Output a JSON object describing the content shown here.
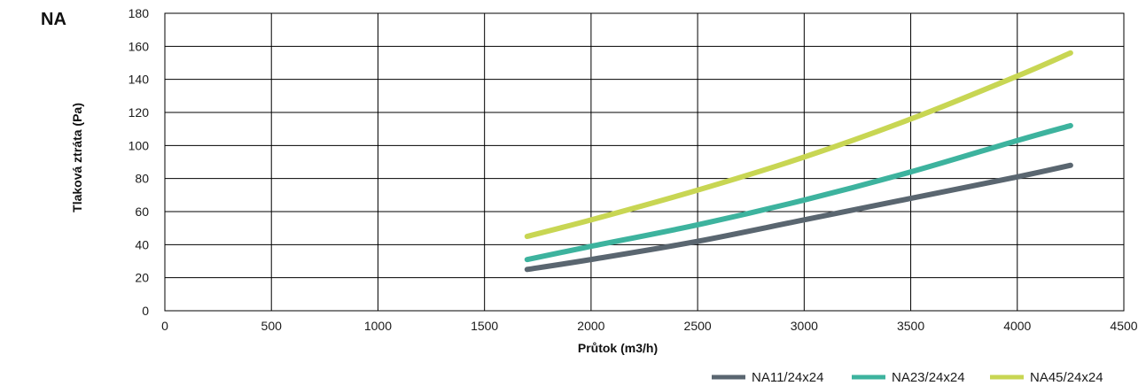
{
  "chart_data": {
    "type": "line",
    "title": "NA",
    "xlabel": "Průtok (m3/h)",
    "ylabel": "Tlaková ztráta (Pa)",
    "xlim": [
      0,
      4500
    ],
    "ylim": [
      0,
      180
    ],
    "x_ticks": [
      0,
      500,
      1000,
      1500,
      2000,
      2500,
      3000,
      3500,
      4000,
      4500
    ],
    "y_ticks": [
      0,
      20,
      40,
      60,
      80,
      100,
      120,
      140,
      160,
      180
    ],
    "grid": true,
    "legend_position": "bottom-right",
    "series": [
      {
        "name": "NA11/24x24",
        "color": "#5a6670",
        "points": [
          [
            1700,
            25
          ],
          [
            2000,
            31
          ],
          [
            2500,
            42
          ],
          [
            3000,
            55
          ],
          [
            3500,
            68
          ],
          [
            4000,
            81
          ],
          [
            4250,
            88
          ]
        ]
      },
      {
        "name": "NA23/24x24",
        "color": "#3db39e",
        "points": [
          [
            1700,
            31
          ],
          [
            2000,
            39
          ],
          [
            2500,
            52
          ],
          [
            3000,
            67
          ],
          [
            3500,
            84
          ],
          [
            4000,
            103
          ],
          [
            4250,
            112
          ]
        ]
      },
      {
        "name": "NA45/24x24",
        "color": "#c8d653",
        "points": [
          [
            1700,
            45
          ],
          [
            2000,
            55
          ],
          [
            2500,
            73
          ],
          [
            3000,
            93
          ],
          [
            3500,
            116
          ],
          [
            4000,
            142
          ],
          [
            4250,
            156
          ]
        ]
      }
    ]
  }
}
